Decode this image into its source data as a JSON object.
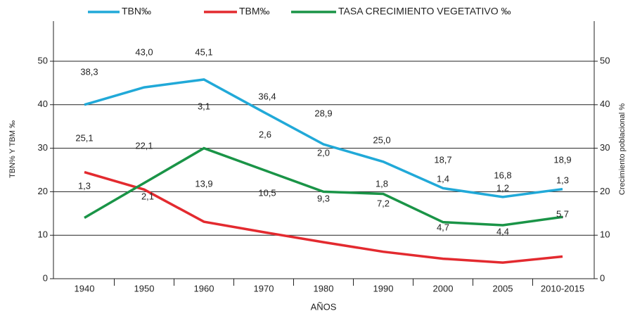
{
  "chart_data": {
    "type": "line",
    "categories": [
      "1940",
      "1950",
      "1960",
      "1970",
      "1980",
      "1990",
      "2000",
      "2005",
      "2010-2015"
    ],
    "series": [
      {
        "name": "TBN‰",
        "color": "#21a9d8",
        "values": [
          40,
          44,
          45.8,
          38.3,
          30.9,
          26.9,
          20.8,
          18.8,
          20.6
        ]
      },
      {
        "name": "TBM‰",
        "color": "#e32a2f",
        "values": [
          24.5,
          20.5,
          13.1,
          10.7,
          8.4,
          6.2,
          4.6,
          3.7,
          5.1
        ]
      },
      {
        "name": "TASA CRECIMIENTO VEGETATIVO ‰",
        "color": "#1a9447",
        "values": [
          14,
          22,
          30,
          25,
          20,
          19.5,
          13,
          12.3,
          14.2
        ]
      }
    ],
    "annotations": {
      "tbn": [
        "38,3",
        "43,0",
        "45,1",
        "36,4",
        "28,9",
        "25,0",
        "18,7",
        "16,8",
        "18,9"
      ],
      "growth": [
        "1,3",
        "2,1",
        "3,1",
        "2,6",
        "2,0",
        "1,8",
        "1,4",
        "1,2",
        "1,3"
      ],
      "tbm": [
        "25,1",
        "22,1",
        "13,9",
        "10,5",
        "9,3",
        "7,2",
        "4,7",
        "4,4",
        "5,7"
      ]
    },
    "xlabel": "AÑOS",
    "ylabel": "TBN% Y TBM ‰",
    "y2label": "Crecimiento poblacional %",
    "ylim": [
      0,
      50
    ],
    "yticks": [
      0,
      10,
      20,
      30,
      40,
      50
    ],
    "y2lim": [
      0,
      50
    ],
    "y2ticks": [
      0,
      10,
      20,
      30,
      40,
      50
    ],
    "grid": true,
    "legend": "top"
  }
}
